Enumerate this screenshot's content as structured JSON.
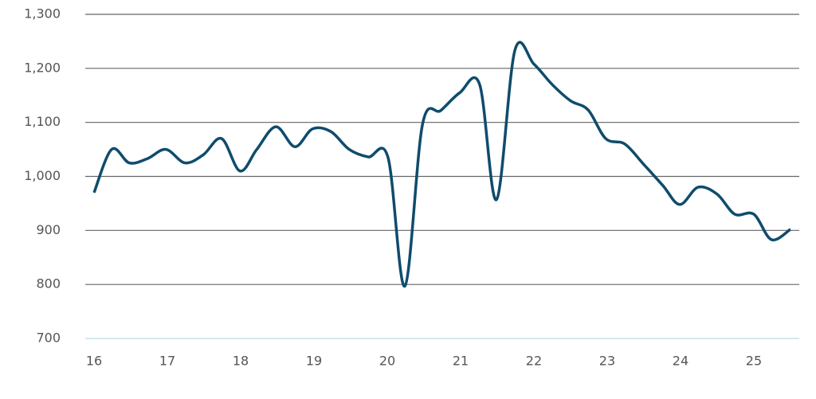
{
  "chart_data": {
    "type": "line",
    "x": [
      16,
      16.24,
      16.48,
      16.73,
      16.98,
      17.24,
      17.49,
      17.74,
      17.99,
      18.22,
      18.48,
      18.74,
      18.98,
      19.23,
      19.48,
      19.74,
      20.01,
      20.24,
      20.48,
      20.73,
      20.99,
      21.26,
      21.49,
      21.74,
      22.0,
      22.25,
      22.5,
      22.74,
      22.98,
      23.24,
      23.5,
      23.76,
      23.99,
      24.24,
      24.5,
      24.74,
      25.0,
      25.24,
      25.5
    ],
    "series": [
      {
        "color": "#0f4c6c",
        "values": [
          970,
          1050,
          1025,
          1033,
          1050,
          1025,
          1040,
          1070,
          1010,
          1050,
          1092,
          1055,
          1088,
          1083,
          1050,
          1036,
          1035,
          797,
          1096,
          1122,
          1155,
          1170,
          957,
          1233,
          1208,
          1170,
          1140,
          1123,
          1070,
          1060,
          1022,
          983,
          948,
          980,
          967,
          930,
          930,
          883,
          902
        ]
      }
    ],
    "xlim": [
      15.88,
      25.62
    ],
    "xticks": [
      16,
      17,
      18,
      19,
      20,
      21,
      22,
      23,
      24,
      25
    ],
    "ylim": [
      700,
      1300
    ],
    "yticks": [
      700,
      800,
      900,
      {
        "value": 1000,
        "label": "1,000"
      },
      {
        "value": 1100,
        "label": "1,100"
      },
      {
        "value": 1200,
        "label": "1,200"
      },
      {
        "value": 1300,
        "label": "1,300"
      }
    ],
    "grid": true
  }
}
